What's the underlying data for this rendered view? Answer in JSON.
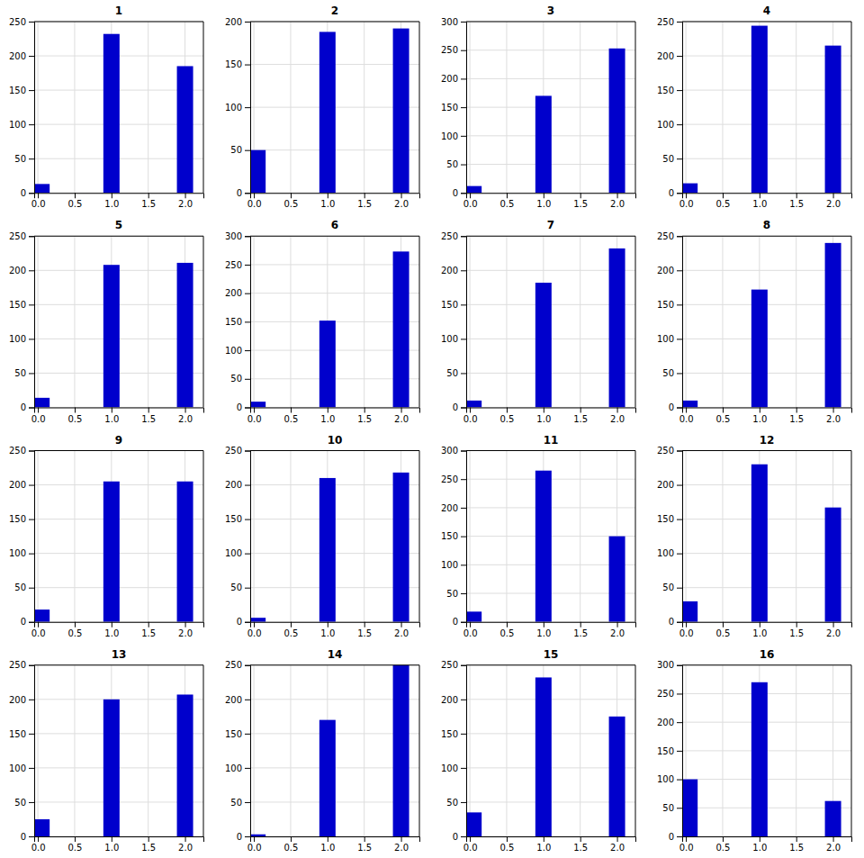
{
  "chart_data": [
    {
      "type": "bar",
      "title": "1",
      "x": [
        0.05,
        1.0,
        2.0
      ],
      "values": [
        13,
        232,
        185
      ],
      "color": "#0000cc",
      "xlim": [
        -0.05,
        2.25
      ],
      "xticks": [
        {
          "value": 0,
          "label": "0.0"
        },
        0.5,
        {
          "value": 1,
          "label": "1.0"
        },
        1.5,
        {
          "value": 2,
          "label": "2.0"
        }
      ],
      "ylim": [
        0,
        250
      ],
      "yticks": [
        0,
        50,
        100,
        150,
        200,
        250
      ],
      "grid": true
    },
    {
      "type": "bar",
      "title": "2",
      "x": [
        0.05,
        1.0,
        2.0
      ],
      "values": [
        50,
        188,
        192
      ],
      "color": "#0000cc",
      "xlim": [
        -0.05,
        2.25
      ],
      "xticks": [
        {
          "value": 0,
          "label": "0.0"
        },
        0.5,
        {
          "value": 1,
          "label": "1.0"
        },
        1.5,
        {
          "value": 2,
          "label": "2.0"
        }
      ],
      "ylim": [
        0,
        200
      ],
      "yticks": [
        0,
        50,
        100,
        150,
        200
      ],
      "grid": true
    },
    {
      "type": "bar",
      "title": "3",
      "x": [
        0.05,
        1.0,
        2.0
      ],
      "values": [
        12,
        170,
        253
      ],
      "color": "#0000cc",
      "xlim": [
        -0.05,
        2.25
      ],
      "xticks": [
        {
          "value": 0,
          "label": "0.0"
        },
        0.5,
        {
          "value": 1,
          "label": "1.0"
        },
        1.5,
        {
          "value": 2,
          "label": "2.0"
        }
      ],
      "ylim": [
        0,
        300
      ],
      "yticks": [
        0,
        50,
        100,
        150,
        200,
        250,
        300
      ],
      "grid": true
    },
    {
      "type": "bar",
      "title": "4",
      "x": [
        0.05,
        1.0,
        2.0
      ],
      "values": [
        14,
        244,
        215
      ],
      "color": "#0000cc",
      "xlim": [
        -0.05,
        2.25
      ],
      "xticks": [
        {
          "value": 0,
          "label": "0.0"
        },
        0.5,
        {
          "value": 1,
          "label": "1.0"
        },
        1.5,
        {
          "value": 2,
          "label": "2.0"
        }
      ],
      "ylim": [
        0,
        250
      ],
      "yticks": [
        0,
        50,
        100,
        150,
        200,
        250
      ],
      "grid": true
    },
    {
      "type": "bar",
      "title": "5",
      "x": [
        0.05,
        1.0,
        2.0
      ],
      "values": [
        14,
        208,
        211
      ],
      "color": "#0000cc",
      "xlim": [
        -0.05,
        2.25
      ],
      "xticks": [
        {
          "value": 0,
          "label": "0.0"
        },
        0.5,
        {
          "value": 1,
          "label": "1.0"
        },
        1.5,
        {
          "value": 2,
          "label": "2.0"
        }
      ],
      "ylim": [
        0,
        250
      ],
      "yticks": [
        0,
        50,
        100,
        150,
        200,
        250
      ],
      "grid": true
    },
    {
      "type": "bar",
      "title": "6",
      "x": [
        0.05,
        1.0,
        2.0
      ],
      "values": [
        10,
        152,
        273
      ],
      "color": "#0000cc",
      "xlim": [
        -0.05,
        2.25
      ],
      "xticks": [
        {
          "value": 0,
          "label": "0.0"
        },
        0.5,
        {
          "value": 1,
          "label": "1.0"
        },
        1.5,
        {
          "value": 2,
          "label": "2.0"
        }
      ],
      "ylim": [
        0,
        300
      ],
      "yticks": [
        0,
        50,
        100,
        150,
        200,
        250,
        300
      ],
      "grid": true
    },
    {
      "type": "bar",
      "title": "7",
      "x": [
        0.05,
        1.0,
        2.0
      ],
      "values": [
        10,
        182,
        232
      ],
      "color": "#0000cc",
      "xlim": [
        -0.05,
        2.25
      ],
      "xticks": [
        {
          "value": 0,
          "label": "0.0"
        },
        0.5,
        {
          "value": 1,
          "label": "1.0"
        },
        1.5,
        {
          "value": 2,
          "label": "2.0"
        }
      ],
      "ylim": [
        0,
        250
      ],
      "yticks": [
        0,
        50,
        100,
        150,
        200,
        250
      ],
      "grid": true
    },
    {
      "type": "bar",
      "title": "8",
      "x": [
        0.05,
        1.0,
        2.0
      ],
      "values": [
        10,
        172,
        240
      ],
      "color": "#0000cc",
      "xlim": [
        -0.05,
        2.25
      ],
      "xticks": [
        {
          "value": 0,
          "label": "0.0"
        },
        0.5,
        {
          "value": 1,
          "label": "1.0"
        },
        1.5,
        {
          "value": 2,
          "label": "2.0"
        }
      ],
      "ylim": [
        0,
        250
      ],
      "yticks": [
        0,
        50,
        100,
        150,
        200,
        250
      ],
      "grid": true
    },
    {
      "type": "bar",
      "title": "9",
      "x": [
        0.05,
        1.0,
        2.0
      ],
      "values": [
        18,
        205,
        205
      ],
      "color": "#0000cc",
      "xlim": [
        -0.05,
        2.25
      ],
      "xticks": [
        {
          "value": 0,
          "label": "0.0"
        },
        0.5,
        {
          "value": 1,
          "label": "1.0"
        },
        1.5,
        {
          "value": 2,
          "label": "2.0"
        }
      ],
      "ylim": [
        0,
        250
      ],
      "yticks": [
        0,
        50,
        100,
        150,
        200,
        250
      ],
      "grid": true
    },
    {
      "type": "bar",
      "title": "10",
      "x": [
        0.05,
        1.0,
        2.0
      ],
      "values": [
        6,
        210,
        218
      ],
      "color": "#0000cc",
      "xlim": [
        -0.05,
        2.25
      ],
      "xticks": [
        {
          "value": 0,
          "label": "0.0"
        },
        0.5,
        {
          "value": 1,
          "label": "1.0"
        },
        1.5,
        {
          "value": 2,
          "label": "2.0"
        }
      ],
      "ylim": [
        0,
        250
      ],
      "yticks": [
        0,
        50,
        100,
        150,
        200,
        250
      ],
      "grid": true
    },
    {
      "type": "bar",
      "title": "11",
      "x": [
        0.05,
        1.0,
        2.0
      ],
      "values": [
        18,
        265,
        150
      ],
      "color": "#0000cc",
      "xlim": [
        -0.05,
        2.25
      ],
      "xticks": [
        {
          "value": 0,
          "label": "0.0"
        },
        0.5,
        {
          "value": 1,
          "label": "1.0"
        },
        1.5,
        {
          "value": 2,
          "label": "2.0"
        }
      ],
      "ylim": [
        0,
        300
      ],
      "yticks": [
        0,
        50,
        100,
        150,
        200,
        250,
        300
      ],
      "grid": true
    },
    {
      "type": "bar",
      "title": "12",
      "x": [
        0.05,
        1.0,
        2.0
      ],
      "values": [
        30,
        230,
        167
      ],
      "color": "#0000cc",
      "xlim": [
        -0.05,
        2.25
      ],
      "xticks": [
        {
          "value": 0,
          "label": "0.0"
        },
        0.5,
        {
          "value": 1,
          "label": "1.0"
        },
        1.5,
        {
          "value": 2,
          "label": "2.0"
        }
      ],
      "ylim": [
        0,
        250
      ],
      "yticks": [
        0,
        50,
        100,
        150,
        200,
        250
      ],
      "grid": true
    },
    {
      "type": "bar",
      "title": "13",
      "x": [
        0.05,
        1.0,
        2.0
      ],
      "values": [
        25,
        200,
        207
      ],
      "color": "#0000cc",
      "xlim": [
        -0.05,
        2.25
      ],
      "xticks": [
        {
          "value": 0,
          "label": "0.0"
        },
        0.5,
        {
          "value": 1,
          "label": "1.0"
        },
        1.5,
        {
          "value": 2,
          "label": "2.0"
        }
      ],
      "ylim": [
        0,
        250
      ],
      "yticks": [
        0,
        50,
        100,
        150,
        200,
        250
      ],
      "grid": true
    },
    {
      "type": "bar",
      "title": "14",
      "x": [
        0.05,
        1.0,
        2.0
      ],
      "values": [
        3,
        170,
        250
      ],
      "color": "#0000cc",
      "xlim": [
        -0.05,
        2.25
      ],
      "xticks": [
        {
          "value": 0,
          "label": "0.0"
        },
        0.5,
        {
          "value": 1,
          "label": "1.0"
        },
        1.5,
        {
          "value": 2,
          "label": "2.0"
        }
      ],
      "ylim": [
        0,
        250
      ],
      "yticks": [
        0,
        50,
        100,
        150,
        200,
        250
      ],
      "grid": true
    },
    {
      "type": "bar",
      "title": "15",
      "x": [
        0.05,
        1.0,
        2.0
      ],
      "values": [
        35,
        232,
        175
      ],
      "color": "#0000cc",
      "xlim": [
        -0.05,
        2.25
      ],
      "xticks": [
        {
          "value": 0,
          "label": "0.0"
        },
        0.5,
        {
          "value": 1,
          "label": "1.0"
        },
        1.5,
        {
          "value": 2,
          "label": "2.0"
        }
      ],
      "ylim": [
        0,
        250
      ],
      "yticks": [
        0,
        50,
        100,
        150,
        200,
        250
      ],
      "grid": true
    },
    {
      "type": "bar",
      "title": "16",
      "x": [
        0.05,
        1.0,
        2.0
      ],
      "values": [
        100,
        270,
        62
      ],
      "color": "#0000cc",
      "xlim": [
        -0.05,
        2.25
      ],
      "xticks": [
        {
          "value": 0,
          "label": "0.0"
        },
        0.5,
        {
          "value": 1,
          "label": "1.0"
        },
        1.5,
        {
          "value": 2,
          "label": "2.0"
        }
      ],
      "ylim": [
        0,
        300
      ],
      "yticks": [
        0,
        50,
        100,
        150,
        200,
        250,
        300
      ],
      "grid": true
    }
  ]
}
